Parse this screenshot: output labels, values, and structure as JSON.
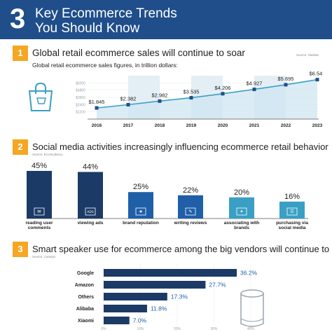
{
  "header": {
    "number": "3",
    "title": "Key Ecommerce Trends You Should Know"
  },
  "sections": [
    {
      "badge": "1",
      "title": "Global retail ecommerce sales will continue to soar",
      "source": "Source: Statista"
    },
    {
      "badge": "2",
      "title": "Social media activities increasingly influencing ecommerce retail behavior",
      "source": "Source: Econsultancy"
    },
    {
      "badge": "3",
      "title": "Smart speaker use for ecommerce among the big vendors will continue to rise",
      "source": "Source: Canalys"
    }
  ],
  "colors": {
    "header": "#1f4e8a",
    "accent": "#f5a623",
    "teal": "#3a9fc4",
    "navy": "#1b3a66",
    "bar_blue": "#1e5fa8"
  },
  "chart_data": [
    {
      "type": "area",
      "title": "Global retail ecommerce sales figures, in trillion dollars:",
      "x": [
        "2016",
        "2017",
        "2018",
        "2019",
        "2020",
        "2021",
        "2022",
        "2023"
      ],
      "values": [
        1.845,
        2.382,
        2.982,
        3.535,
        4.206,
        4.927,
        5.695,
        6.542
      ],
      "value_labels": [
        "$1.845",
        "$2.382",
        "$2.982",
        "$3.535",
        "$4.206",
        "$4.927",
        "$5.695",
        "$6.542"
      ],
      "y_ticks": [
        "$1200",
        "$2400",
        "$3600",
        "$4800",
        "$6000"
      ],
      "ylim": [
        0,
        7.2
      ]
    },
    {
      "type": "bar",
      "categories": [
        "reading user comments",
        "viewing ads",
        "brand reputation",
        "writing reviews",
        "associating with brands",
        "purchasing via social media"
      ],
      "values": [
        45,
        44,
        25,
        22,
        20,
        16
      ],
      "value_labels": [
        "45%",
        "44%",
        "25%",
        "22%",
        "20%",
        "16%"
      ],
      "icons": [
        "comment-icon",
        "ads-icon",
        "reputation-icon",
        "review-icon",
        "network-icon",
        "cart-icon"
      ]
    },
    {
      "type": "bar",
      "orientation": "horizontal",
      "categories": [
        "Google",
        "Amazon",
        "Others",
        "Alibaba",
        "Xiaomi"
      ],
      "values": [
        36.2,
        27.7,
        17.3,
        11.8,
        7.0
      ],
      "value_labels": [
        "36.2%",
        "27.7%",
        "17.3%",
        "11.8%",
        "7.0%"
      ],
      "x_ticks": [
        "0%",
        "10%",
        "20%",
        "30%",
        "40%"
      ],
      "xlim": [
        0,
        40
      ]
    }
  ]
}
